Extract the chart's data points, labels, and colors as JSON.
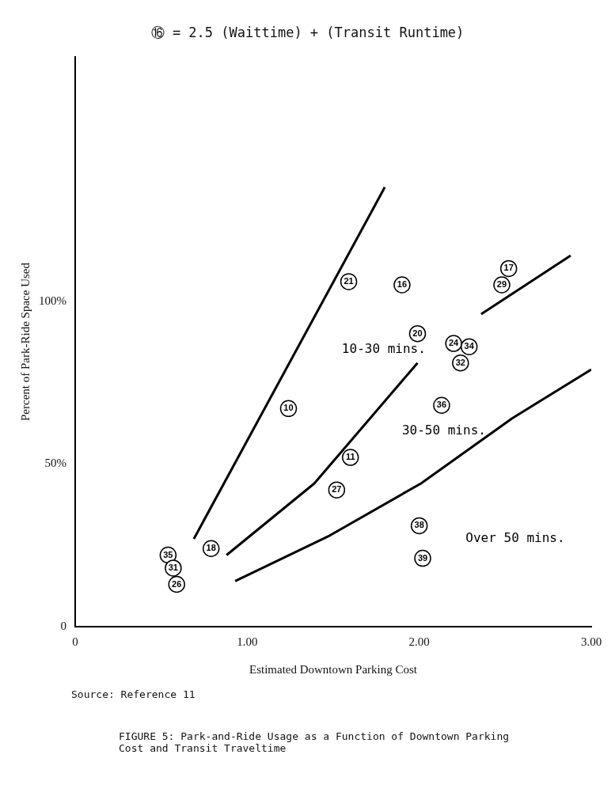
{
  "chart_data": {
    "type": "scatter",
    "title": "⑯ = 2.5 (Waittime) + (Transit Runtime)",
    "xlabel": "Estimated Downtown Parking Cost",
    "ylabel": "Percent of Park-Ride Space Used",
    "xlim": [
      0,
      3
    ],
    "ylim": [
      0,
      175
    ],
    "xticks": [
      {
        "value": 0,
        "label": "0"
      },
      {
        "value": 1,
        "label": "1.00"
      },
      {
        "value": 2,
        "label": "2.00"
      },
      {
        "value": 3,
        "label": "3.00"
      }
    ],
    "yticks": [
      {
        "value": 0,
        "label": "0"
      },
      {
        "value": 50,
        "label": "50%"
      },
      {
        "value": 100,
        "label": "100%"
      }
    ],
    "grid": false,
    "legend": false,
    "series": [
      {
        "type": "scatter",
        "marker": "circle",
        "color": "#000000",
        "x": [
          1.59,
          1.9,
          2.52,
          2.48,
          1.99,
          2.2,
          2.29,
          2.24,
          2.13,
          1.24,
          1.6,
          1.52,
          2.0,
          2.02,
          0.79,
          0.54,
          0.57,
          0.59
        ],
        "values": [
          106,
          105,
          110,
          105,
          90,
          87,
          86,
          81,
          68,
          67,
          52,
          42,
          31,
          21,
          24,
          22,
          18,
          13
        ]
      },
      {
        "type": "line",
        "marker": "none",
        "color": "#000000",
        "x": [
          0.69,
          1.8
        ],
        "values": [
          27,
          135
        ]
      },
      {
        "type": "line",
        "marker": "none",
        "color": "#000000",
        "x": [
          0.88,
          1.39,
          1.99,
          2.17,
          2.36,
          2.88
        ],
        "values": [
          22,
          44,
          81,
          null,
          96,
          114
        ]
      },
      {
        "type": "line",
        "marker": "none",
        "color": "#000000",
        "x": [
          0.93,
          1.48,
          2.01,
          2.54,
          3.0
        ],
        "values": [
          14,
          28,
          44,
          64,
          79
        ]
      }
    ],
    "annotations": [
      {
        "text": "21",
        "x": 1.59,
        "y": 106
      },
      {
        "text": "16",
        "x": 1.9,
        "y": 105
      },
      {
        "text": "17",
        "x": 2.52,
        "y": 110
      },
      {
        "text": "29",
        "x": 2.48,
        "y": 105
      },
      {
        "text": "20",
        "x": 1.99,
        "y": 90
      },
      {
        "text": "24",
        "x": 2.2,
        "y": 87
      },
      {
        "text": "34",
        "x": 2.29,
        "y": 86
      },
      {
        "text": "32",
        "x": 2.24,
        "y": 81
      },
      {
        "text": "36",
        "x": 2.13,
        "y": 68
      },
      {
        "text": "10",
        "x": 1.24,
        "y": 67
      },
      {
        "text": "11",
        "x": 1.6,
        "y": 52
      },
      {
        "text": "27",
        "x": 1.52,
        "y": 42
      },
      {
        "text": "38",
        "x": 2.0,
        "y": 31
      },
      {
        "text": "39",
        "x": 2.02,
        "y": 21
      },
      {
        "text": "18",
        "x": 0.79,
        "y": 24
      },
      {
        "text": "35",
        "x": 0.54,
        "y": 22
      },
      {
        "text": "31",
        "x": 0.57,
        "y": 18
      },
      {
        "text": "26",
        "x": 0.59,
        "y": 13
      },
      "10-30 mins.",
      "30-50 mins.",
      "Over 50 mins.",
      "Source:  Reference 11",
      "FIGURE 5:  Park-and-Ride Usage as a Function of Downtown Parking Cost and Transit Traveltime"
    ]
  }
}
